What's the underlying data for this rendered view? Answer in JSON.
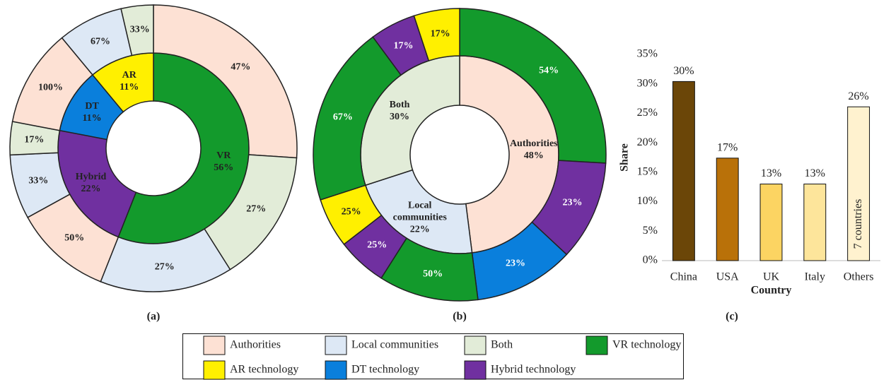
{
  "chart_data": [
    {
      "type": "sunburst",
      "caption": "(a)",
      "inner": {
        "categories": [
          "VR",
          "Hybrid",
          "DT",
          "AR"
        ],
        "values": [
          56,
          22,
          11,
          11
        ],
        "value_labels": [
          "56%",
          "22%",
          "11%",
          "11%"
        ],
        "colors": [
          "#139a2c",
          "#7030a0",
          "#0a7fdc",
          "#fff000"
        ]
      },
      "outer": [
        {
          "values": [
            47,
            27,
            27
          ],
          "value_labels": [
            "47%",
            "27%",
            "27%"
          ],
          "colors": [
            "#fde1d4",
            "#e2ecd8",
            "#dde8f5"
          ]
        },
        {
          "values": [
            50,
            33,
            17
          ],
          "value_labels": [
            "50%",
            "33%",
            "17%"
          ],
          "colors": [
            "#fde1d4",
            "#dde8f5",
            "#e2ecd8"
          ]
        },
        {
          "values": [
            100
          ],
          "value_labels": [
            "100%"
          ],
          "colors": [
            "#fde1d4"
          ]
        },
        {
          "values": [
            67,
            33
          ],
          "value_labels": [
            "67%",
            "33%"
          ],
          "colors": [
            "#dde8f5",
            "#e2ecd8"
          ]
        }
      ]
    },
    {
      "type": "sunburst",
      "caption": "(b)",
      "inner": {
        "categories": [
          "Authorities",
          "Local communities",
          "Both"
        ],
        "values": [
          48,
          22,
          30
        ],
        "value_labels": [
          "48%",
          "22%",
          "30%"
        ],
        "colors": [
          "#fde1d4",
          "#dde8f5",
          "#e2ecd8"
        ]
      },
      "outer": [
        {
          "values": [
            54,
            23,
            23
          ],
          "value_labels": [
            "54%",
            "23%",
            "23%"
          ],
          "colors": [
            "#139a2c",
            "#7030a0",
            "#0a7fdc"
          ]
        },
        {
          "values": [
            50,
            25,
            25
          ],
          "value_labels": [
            "50%",
            "25%",
            "25%"
          ],
          "colors": [
            "#139a2c",
            "#7030a0",
            "#fff000"
          ]
        },
        {
          "values": [
            67,
            17,
            17
          ],
          "value_labels": [
            "67%",
            "17%",
            "17%"
          ],
          "colors": [
            "#139a2c",
            "#7030a0",
            "#fff000"
          ]
        }
      ]
    },
    {
      "type": "bar",
      "caption": "(c)",
      "x_label": "Country",
      "y_label": "Share",
      "categories": [
        "China",
        "USA",
        "UK",
        "Italy",
        "Others"
      ],
      "values": [
        30.4,
        17.4,
        13,
        13,
        26.1
      ],
      "value_labels": [
        "30%",
        "17%",
        "13%",
        "13%",
        "26%"
      ],
      "colors": [
        "#6b4608",
        "#b97109",
        "#fcd462",
        "#fde59b",
        "#fff2cf"
      ],
      "bar_notes": [
        null,
        null,
        null,
        null,
        "7 countries"
      ],
      "ylim": [
        0,
        35
      ],
      "yticks": [
        {
          "value": 0,
          "label": "0%"
        },
        {
          "value": 5,
          "label": "5%"
        },
        {
          "value": 10,
          "label": "10%"
        },
        {
          "value": 15,
          "label": "15%"
        },
        {
          "value": 20,
          "label": "20%"
        },
        {
          "value": 25,
          "label": "25%"
        },
        {
          "value": 30,
          "label": "30%"
        },
        {
          "value": 35,
          "label": "35%"
        }
      ]
    }
  ],
  "legend": {
    "entries": [
      {
        "label": "Authorities",
        "color": "#fde1d4"
      },
      {
        "label": "Local communities",
        "color": "#dde8f5"
      },
      {
        "label": "Both",
        "color": "#e2ecd8"
      },
      {
        "label": "VR technology",
        "color": "#139a2c"
      },
      {
        "label": "AR technology",
        "color": "#fff000"
      },
      {
        "label": "DT technology",
        "color": "#0a7fdc"
      },
      {
        "label": "Hybrid technology",
        "color": "#7030a0"
      }
    ]
  }
}
